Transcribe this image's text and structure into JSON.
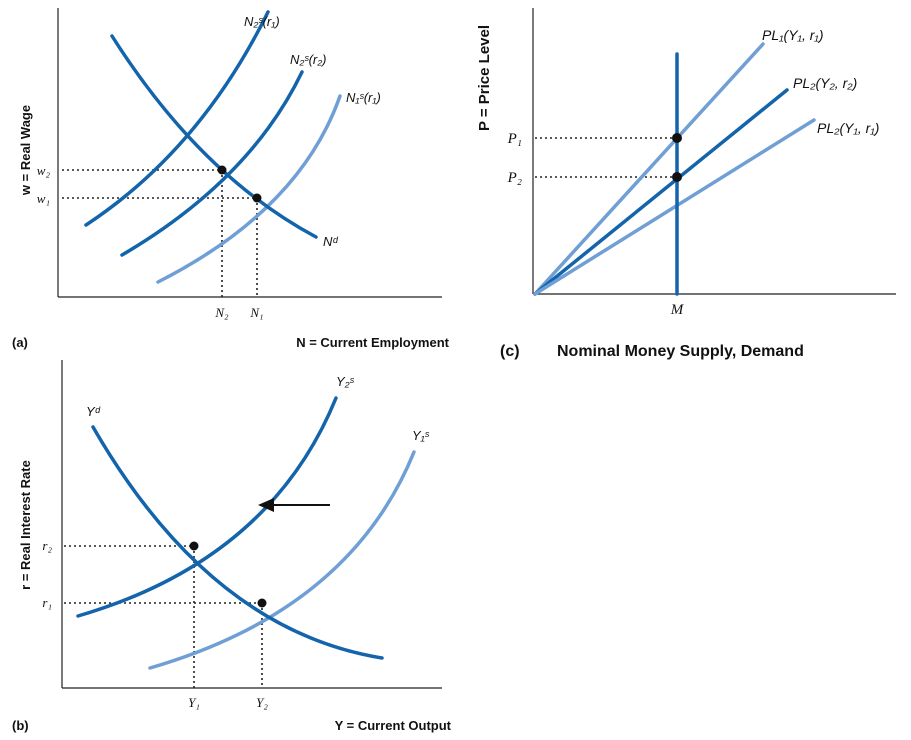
{
  "panel_a": {
    "tag": "(a)",
    "y_axis_label": "w = Real Wage",
    "x_axis_label": "N = Current Employment",
    "tick_w2": "w₂",
    "tick_w1": "w₁",
    "tick_n2": "N₂",
    "tick_n1": "N₁",
    "curve_ns2_r1": "N₂ˢ(r₁)",
    "curve_ns2_r2": "N₂ˢ(r₂)",
    "curve_ns1_r1": "N₁ˢ(r₁)",
    "curve_nd": "Nᵈ"
  },
  "panel_b": {
    "tag": "(b)",
    "y_axis_label": "r = Real Interest Rate",
    "x_axis_label": "Y = Current Output",
    "tick_r2": "r₂",
    "tick_r1": "r₁",
    "tick_y1": "Y₁",
    "tick_y2": "Y₂",
    "curve_yd": "Yᵈ",
    "curve_ys2": "Y₂ˢ",
    "curve_ys1": "Y₁ˢ"
  },
  "panel_c": {
    "tag": "(c)",
    "caption": "Nominal Money Supply, Demand",
    "y_axis_label": "P = Price Level",
    "tick_p1": "P₁",
    "tick_p2": "P₂",
    "tick_m": "M",
    "line_pl1": "PL₁(Y₁, r₁)",
    "line_pl2_y2r2": "PL₂(Y₂, r₂)",
    "line_pl2_y1r1": "PL₂(Y₁, r₁)"
  },
  "colors": {
    "dark_curve": "#1464ac",
    "light_curve": "#6f9fd4"
  }
}
